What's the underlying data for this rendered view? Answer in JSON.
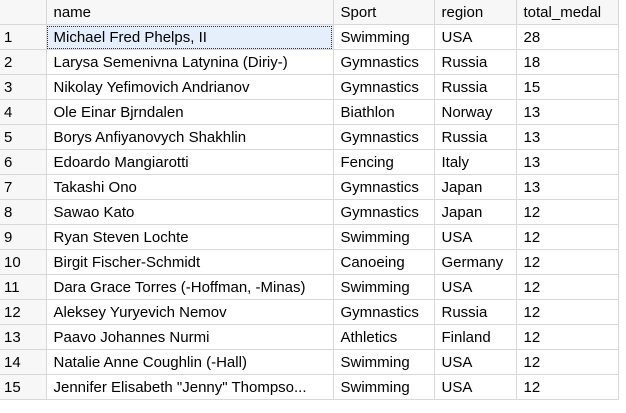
{
  "columns": [
    "",
    "name",
    "Sport",
    "region",
    "total_medal"
  ],
  "rows": [
    [
      "1",
      "Michael Fred Phelps, II",
      "Swimming",
      "USA",
      "28"
    ],
    [
      "2",
      "Larysa Semenivna Latynina (Diriy-)",
      "Gymnastics",
      "Russia",
      "18"
    ],
    [
      "3",
      "Nikolay Yefimovich Andrianov",
      "Gymnastics",
      "Russia",
      "15"
    ],
    [
      "4",
      "Ole Einar Bjrndalen",
      "Biathlon",
      "Norway",
      "13"
    ],
    [
      "5",
      "Borys Anfiyanovych Shakhlin",
      "Gymnastics",
      "Russia",
      "13"
    ],
    [
      "6",
      "Edoardo Mangiarotti",
      "Fencing",
      "Italy",
      "13"
    ],
    [
      "7",
      "Takashi Ono",
      "Gymnastics",
      "Japan",
      "13"
    ],
    [
      "8",
      "Sawao Kato",
      "Gymnastics",
      "Japan",
      "12"
    ],
    [
      "9",
      "Ryan Steven Lochte",
      "Swimming",
      "USA",
      "12"
    ],
    [
      "10",
      "Birgit Fischer-Schmidt",
      "Canoeing",
      "Germany",
      "12"
    ],
    [
      "11",
      "Dara Grace Torres (-Hoffman, -Minas)",
      "Swimming",
      "USA",
      "12"
    ],
    [
      "12",
      "Aleksey Yuryevich Nemov",
      "Gymnastics",
      "Russia",
      "12"
    ],
    [
      "13",
      "Paavo Johannes Nurmi",
      "Athletics",
      "Finland",
      "12"
    ],
    [
      "14",
      "Natalie Anne Coughlin (-Hall)",
      "Swimming",
      "USA",
      "12"
    ],
    [
      "15",
      "Jennifer Elisabeth \"Jenny\" Thompso...",
      "Swimming",
      "USA",
      "12"
    ]
  ],
  "selected_cell": {
    "row": 0,
    "col": 1
  }
}
